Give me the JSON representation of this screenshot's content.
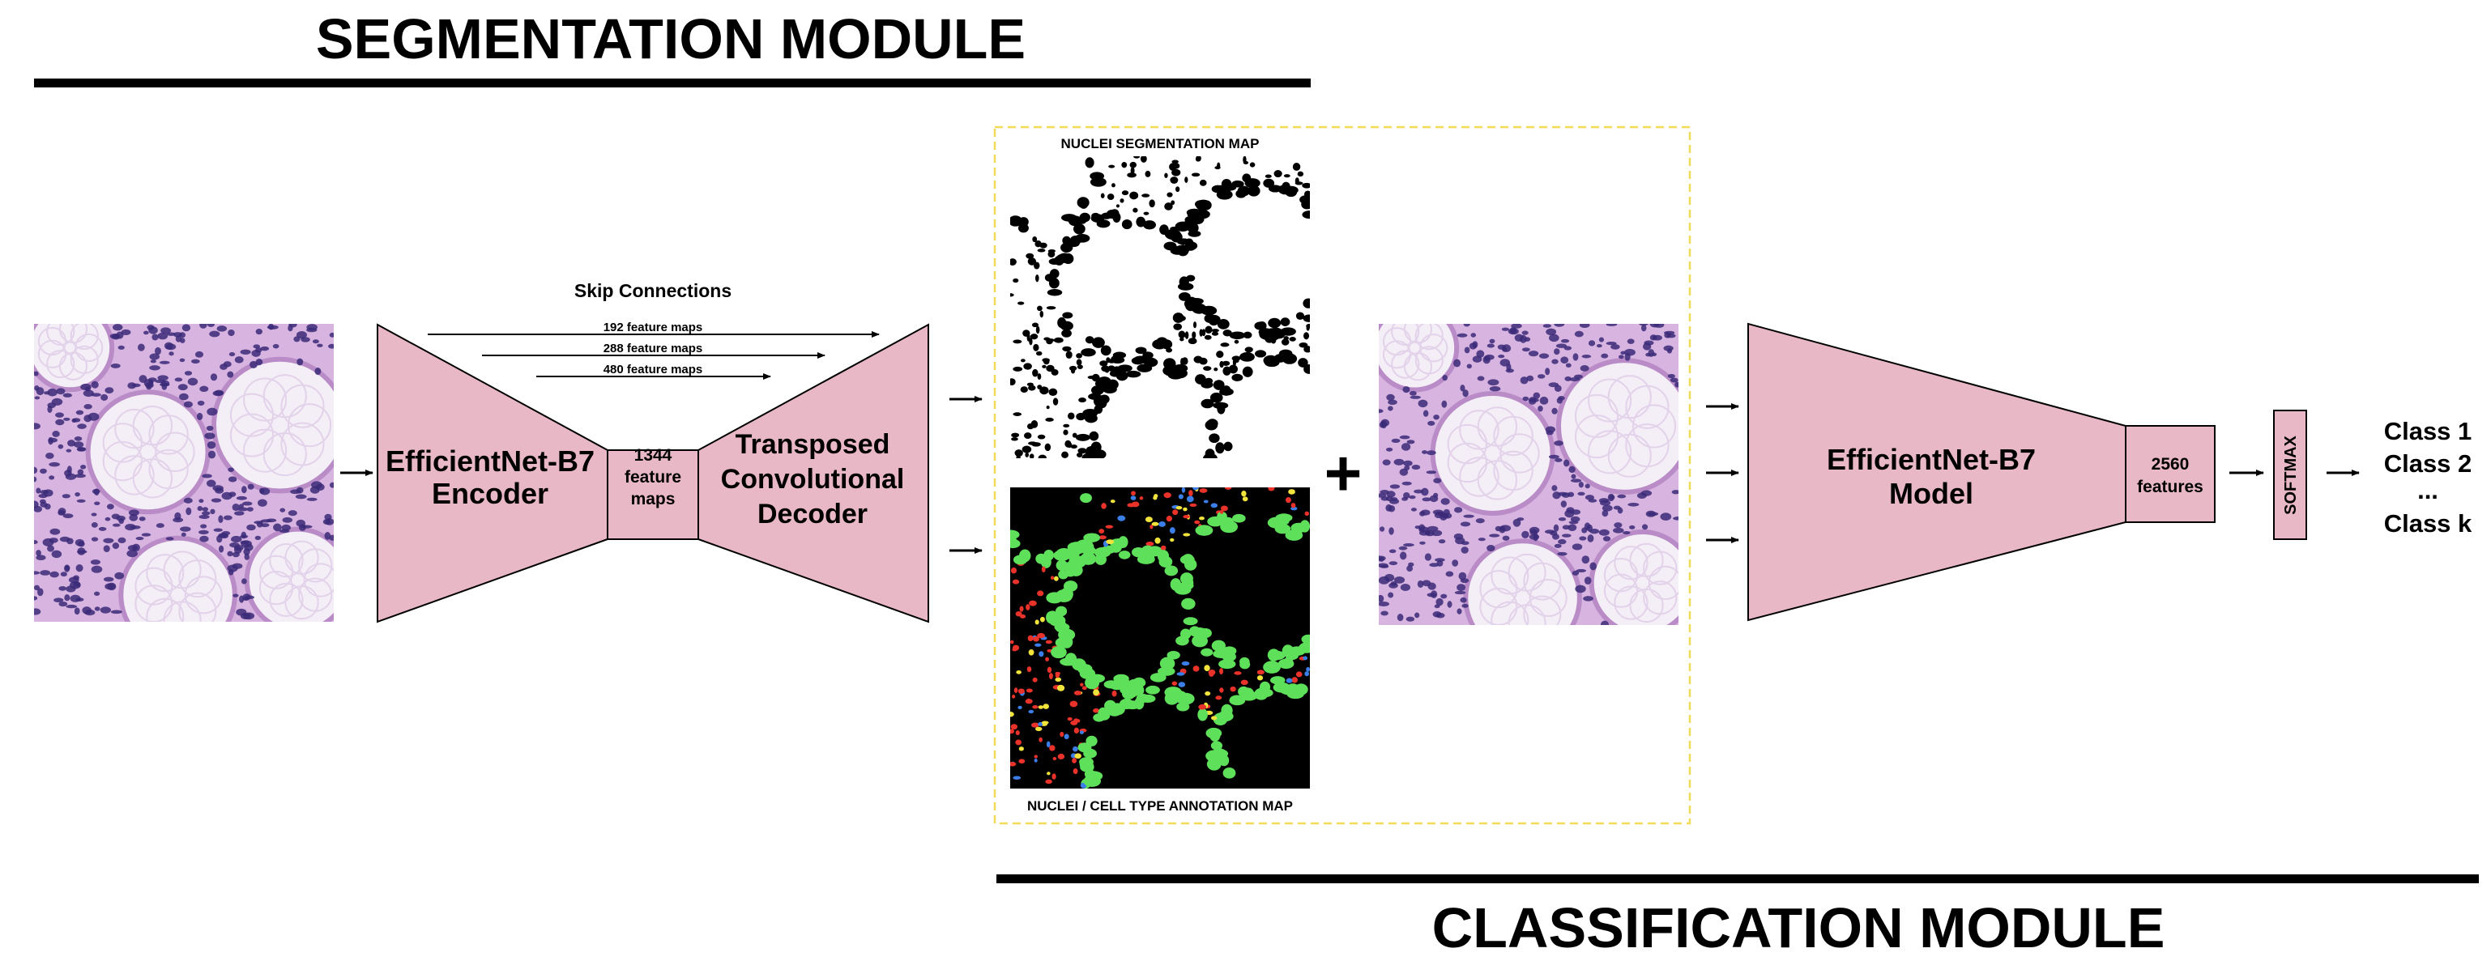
{
  "modules": {
    "segmentation_title": "SEGMENTATION MODULE",
    "classification_title": "CLASSIFICATION MODULE"
  },
  "skip": {
    "title": "Skip Connections",
    "items": [
      "192 feature maps",
      "288 feature maps",
      "480 feature maps"
    ]
  },
  "encoder": {
    "line1": "EfficientNet-B7",
    "line2": "Encoder"
  },
  "bottleneck": {
    "line1": "1344",
    "line2": "feature",
    "line3": "maps"
  },
  "decoder": {
    "line1": "Transposed",
    "line2": "Convolutional",
    "line3": "Decoder"
  },
  "maps": {
    "segmentation_label": "NUCLEI SEGMENTATION MAP",
    "annotation_label": "NUCLEI / CELL TYPE ANNOTATION MAP"
  },
  "plus_symbol": "+",
  "classifier": {
    "line1": "EfficientNet-B7",
    "line2": "Model"
  },
  "features": {
    "line1": "2560",
    "line2": "features"
  },
  "softmax": "SOFTMAX",
  "classes": [
    "Class 1",
    "Class 2",
    "...",
    "Class k"
  ],
  "colors": {
    "block_fill": "#e8b8c6",
    "tissue_bg": "#d8b4e0",
    "nucleus": "#3b2a78",
    "dashed_box": "#f2dc57",
    "cell_green": "#5fe05a",
    "cell_red": "#e8322a",
    "cell_yellow": "#f2e33c",
    "cell_blue": "#3c7ee8"
  }
}
